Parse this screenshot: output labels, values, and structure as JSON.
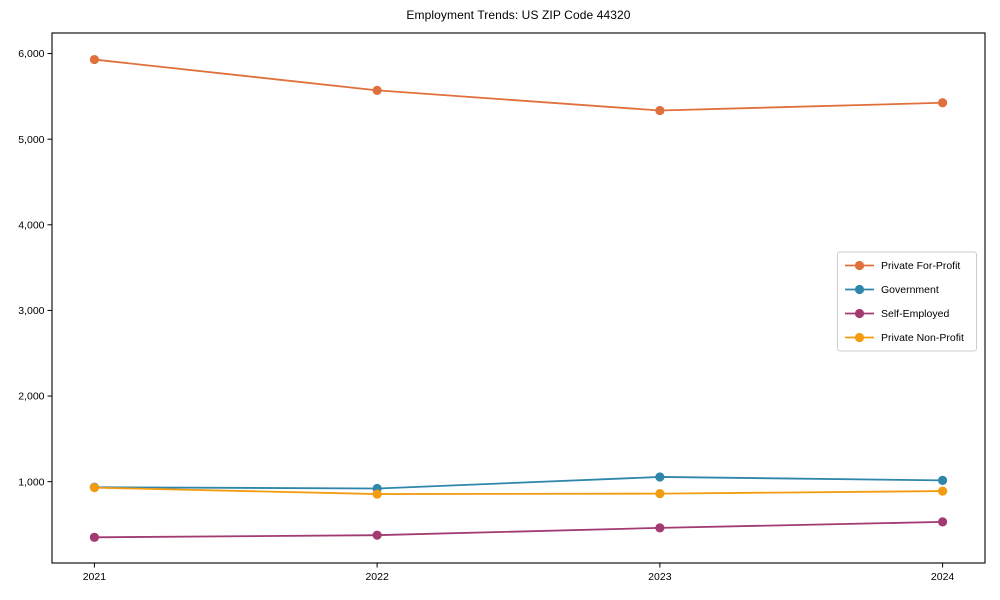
{
  "figure": {
    "background_color": "#ffffff",
    "frame_color": "#000000"
  },
  "chart_data": {
    "type": "line",
    "title": "Employment Trends: US ZIP Code 44320",
    "xlabel": "",
    "ylabel": "",
    "x": [
      2021,
      2022,
      2023,
      2024
    ],
    "x_tick_labels": [
      "2021",
      "2022",
      "2023",
      "2024"
    ],
    "y_ticks": [
      1000,
      2000,
      3000,
      4000,
      5000,
      6000
    ],
    "y_tick_labels": [
      "1,000",
      "2,000",
      "3,000",
      "4,000",
      "5,000",
      "6,000"
    ],
    "xlim": [
      2020.85,
      2024.15
    ],
    "ylim": [
      50,
      6240
    ],
    "grid": false,
    "legend_position": "center right",
    "legend_border_color": "#cccccc",
    "series": [
      {
        "name": "Private For-Profit",
        "color": "#e0703c",
        "values": [
          5930,
          5570,
          5335,
          5425
        ]
      },
      {
        "name": "Government",
        "color": "#2e86ab",
        "values": [
          935,
          920,
          1055,
          1015
        ]
      },
      {
        "name": "Self-Employed",
        "color": "#a23b72",
        "values": [
          350,
          375,
          460,
          530
        ]
      },
      {
        "name": "Private Non-Profit",
        "color": "#f39c12",
        "values": [
          930,
          855,
          860,
          890
        ]
      }
    ]
  }
}
